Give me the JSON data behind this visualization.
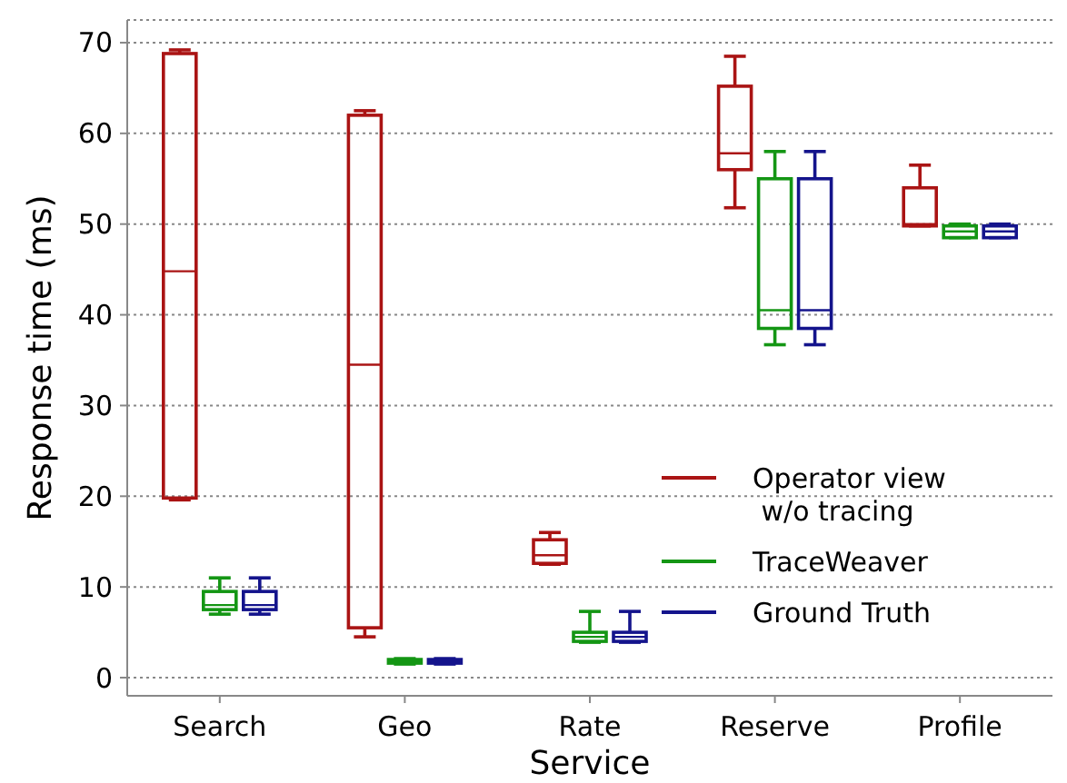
{
  "chart_data": {
    "type": "box",
    "xlabel": "Service",
    "ylabel": "Response time (ms)",
    "categories": [
      "Search",
      "Geo",
      "Rate",
      "Reserve",
      "Profile"
    ],
    "ylim": [
      -2,
      72.5
    ],
    "yticks": [
      0,
      10,
      20,
      30,
      40,
      50,
      60,
      70
    ],
    "grid": "y",
    "legend": "bottom right",
    "series": [
      {
        "name": "Operator view\n w/o tracing",
        "color": "#aa1414",
        "boxes": [
          {
            "low": 19.6,
            "q1": 19.8,
            "median": 44.8,
            "q3": 68.8,
            "high": 69.2
          },
          {
            "low": 4.5,
            "q1": 5.5,
            "median": 34.5,
            "q3": 62,
            "high": 62.5
          },
          {
            "low": 12.5,
            "q1": 12.6,
            "median": 13.5,
            "q3": 15.2,
            "high": 16
          },
          {
            "low": 51.8,
            "q1": 56,
            "median": 57.8,
            "q3": 65.2,
            "high": 68.5
          },
          {
            "low": 49.8,
            "q1": 49.8,
            "median": 50,
            "q3": 54,
            "high": 56.5
          }
        ]
      },
      {
        "name": "TraceWeaver",
        "color": "#149614",
        "boxes": [
          {
            "low": 7,
            "q1": 7.5,
            "median": 8,
            "q3": 9.5,
            "high": 11
          },
          {
            "low": 1.5,
            "q1": 1.6,
            "median": 1.8,
            "q3": 2,
            "high": 2.1
          },
          {
            "low": 3.9,
            "q1": 4,
            "median": 4.5,
            "q3": 5,
            "high": 7.3
          },
          {
            "low": 36.7,
            "q1": 38.5,
            "median": 40.5,
            "q3": 55,
            "high": 58
          },
          {
            "low": 48.5,
            "q1": 48.5,
            "median": 49.2,
            "q3": 49.8,
            "high": 50
          }
        ]
      },
      {
        "name": "Ground Truth",
        "color": "#14148c",
        "boxes": [
          {
            "low": 7,
            "q1": 7.5,
            "median": 8,
            "q3": 9.5,
            "high": 11
          },
          {
            "low": 1.5,
            "q1": 1.6,
            "median": 1.8,
            "q3": 2,
            "high": 2.1
          },
          {
            "low": 3.9,
            "q1": 4,
            "median": 4.5,
            "q3": 5,
            "high": 7.3
          },
          {
            "low": 36.7,
            "q1": 38.5,
            "median": 40.5,
            "q3": 55,
            "high": 58
          },
          {
            "low": 48.5,
            "q1": 48.5,
            "median": 49.2,
            "q3": 49.8,
            "high": 50
          }
        ]
      }
    ]
  }
}
